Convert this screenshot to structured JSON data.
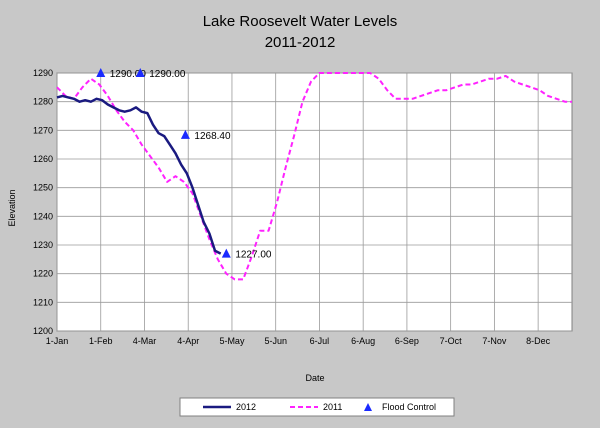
{
  "chart_data": {
    "type": "line",
    "title": "Lake Roosevelt Water Levels",
    "subtitle": "2011-2012",
    "xlabel": "Date",
    "ylabel": "Elevation",
    "ylim": [
      1200,
      1290
    ],
    "y_ticks": [
      1200,
      1210,
      1220,
      1230,
      1240,
      1250,
      1260,
      1270,
      1280,
      1290
    ],
    "x_ticks": [
      {
        "label": "1-Jan",
        "day": 0
      },
      {
        "label": "1-Feb",
        "day": 31
      },
      {
        "label": "4-Mar",
        "day": 62
      },
      {
        "label": "4-Apr",
        "day": 93
      },
      {
        "label": "5-May",
        "day": 124
      },
      {
        "label": "5-Jun",
        "day": 155
      },
      {
        "label": "6-Jul",
        "day": 186
      },
      {
        "label": "6-Aug",
        "day": 217
      },
      {
        "label": "6-Sep",
        "day": 248
      },
      {
        "label": "7-Oct",
        "day": 279
      },
      {
        "label": "7-Nov",
        "day": 310
      },
      {
        "label": "8-Dec",
        "day": 341
      }
    ],
    "xlim": [
      0,
      365
    ],
    "grid": true,
    "legend_position": "bottom",
    "series": [
      {
        "name": "2012",
        "color": "#1a1a80",
        "style": "solid",
        "x": [
          0,
          4,
          8,
          12,
          16,
          20,
          24,
          28,
          32,
          36,
          40,
          44,
          48,
          52,
          56,
          60,
          64,
          68,
          72,
          76,
          80,
          84,
          88,
          92,
          96,
          100,
          104,
          108,
          112,
          116
        ],
        "y": [
          1281.5,
          1282,
          1281.5,
          1281,
          1280,
          1280.5,
          1280,
          1281,
          1280.5,
          1279,
          1278,
          1277,
          1276.5,
          1277,
          1278,
          1276.5,
          1276,
          1272,
          1269,
          1268,
          1265,
          1262,
          1258,
          1255,
          1250,
          1244,
          1238,
          1234,
          1228,
          1227
        ]
      },
      {
        "name": "2011",
        "color": "#ff22ff",
        "style": "dashed",
        "x": [
          0,
          6,
          12,
          18,
          24,
          30,
          36,
          42,
          48,
          54,
          60,
          66,
          72,
          78,
          84,
          90,
          96,
          102,
          108,
          114,
          120,
          126,
          132,
          138,
          144,
          150,
          156,
          162,
          168,
          174,
          180,
          186,
          192,
          198,
          204,
          210,
          216,
          222,
          228,
          234,
          240,
          246,
          252,
          258,
          264,
          270,
          276,
          282,
          288,
          294,
          300,
          306,
          312,
          318,
          324,
          330,
          336,
          342,
          348,
          354,
          360,
          365
        ],
        "y": [
          1285,
          1282,
          1281,
          1285,
          1288,
          1286,
          1282,
          1277,
          1273,
          1270,
          1265,
          1261,
          1257,
          1252,
          1254,
          1252,
          1248,
          1240,
          1232,
          1225,
          1220,
          1218,
          1218,
          1226,
          1235,
          1235,
          1245,
          1257,
          1268,
          1280,
          1287,
          1290,
          1290,
          1290,
          1290,
          1290,
          1290,
          1290,
          1288,
          1284,
          1281,
          1281,
          1281,
          1282,
          1283,
          1284,
          1284,
          1285,
          1286,
          1286,
          1287,
          1288,
          1288,
          1289,
          1287,
          1286,
          1285,
          1284,
          1282,
          1281,
          1280,
          1280
        ]
      }
    ],
    "flood_control": {
      "name": "Flood Control",
      "color": "#1a2aff",
      "points": [
        {
          "day": 31,
          "y": 1290.0,
          "label": "1290.00"
        },
        {
          "day": 59,
          "y": 1290.0,
          "label": "1290.00"
        },
        {
          "day": 91,
          "y": 1268.4,
          "label": "1268.40"
        },
        {
          "day": 120,
          "y": 1227.0,
          "label": "1227.00"
        }
      ]
    }
  }
}
